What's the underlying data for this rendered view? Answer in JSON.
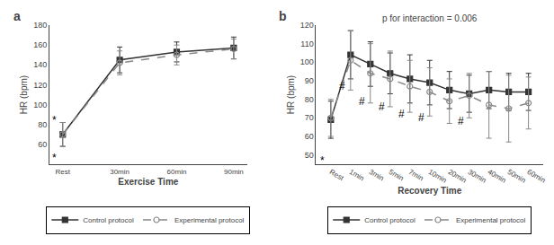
{
  "chart_data": [
    {
      "type": "line",
      "title": "a",
      "categories": [
        "Rest",
        "30min",
        "60min",
        "90min"
      ],
      "series": [
        {
          "name": "Control protocol",
          "color": "#333333",
          "values": [
            70,
            145,
            153,
            157
          ],
          "error": [
            12,
            13,
            10,
            11
          ],
          "marker": "square",
          "line_style": "solid"
        },
        {
          "name": "Experimental protocol",
          "color": "#888888",
          "values": [
            70,
            142,
            150,
            156
          ],
          "error": [
            12,
            12,
            10,
            10
          ],
          "marker": "circle-open",
          "line_style": "dash"
        }
      ],
      "ylim": [
        40,
        180
      ],
      "yticks": [
        60,
        80,
        100,
        120,
        140,
        160,
        180
      ],
      "ylabel": "HR (bpm)",
      "xlabel": "Exercise Time",
      "annotations": [
        {
          "text": "*",
          "x": "Rest",
          "y": 84
        },
        {
          "text": "*",
          "x": "Rest",
          "y": 46
        }
      ],
      "grid": false,
      "legend": "bottom"
    },
    {
      "type": "line",
      "title": "b",
      "subtitle": "p for interaction = 0.006",
      "categories": [
        "Rest",
        "1min",
        "3min",
        "5min",
        "7min",
        "10min",
        "20min",
        "30min",
        "40min",
        "50min",
        "60min"
      ],
      "series": [
        {
          "name": "Control protocol",
          "color": "#333333",
          "values": [
            69,
            104,
            99,
            94,
            91,
            89,
            85,
            83,
            85,
            84,
            84
          ],
          "error": [
            10,
            13,
            12,
            11,
            13,
            12,
            10,
            10,
            10,
            10,
            10
          ],
          "marker": "square",
          "line_style": "solid"
        },
        {
          "name": "Experimental protocol",
          "color": "#888888",
          "values": [
            70,
            101,
            94,
            91,
            87,
            84,
            79,
            82,
            77,
            75,
            78
          ],
          "error": [
            10,
            16,
            16,
            15,
            14,
            13,
            12,
            12,
            18,
            18,
            14
          ],
          "marker": "circle-open",
          "line_style": "dash"
        }
      ],
      "ylim": [
        45,
        120
      ],
      "yticks": [
        50,
        60,
        70,
        80,
        90,
        100,
        110,
        120
      ],
      "ylabel": "HR (bpm)",
      "xlabel": "Recovery Time",
      "annotations": [
        {
          "text": "*",
          "x": "Rest",
          "y": 47
        },
        {
          "text": "#",
          "x": "1min",
          "y": 87
        },
        {
          "text": "#",
          "x": "3min",
          "y": 79
        },
        {
          "text": "#",
          "x": "5min",
          "y": 76
        },
        {
          "text": "#",
          "x": "7min",
          "y": 72
        },
        {
          "text": "#",
          "x": "10min",
          "y": 70
        },
        {
          "text": "#",
          "x": "30min",
          "y": 68
        }
      ],
      "grid": false,
      "legend": "bottom"
    }
  ]
}
